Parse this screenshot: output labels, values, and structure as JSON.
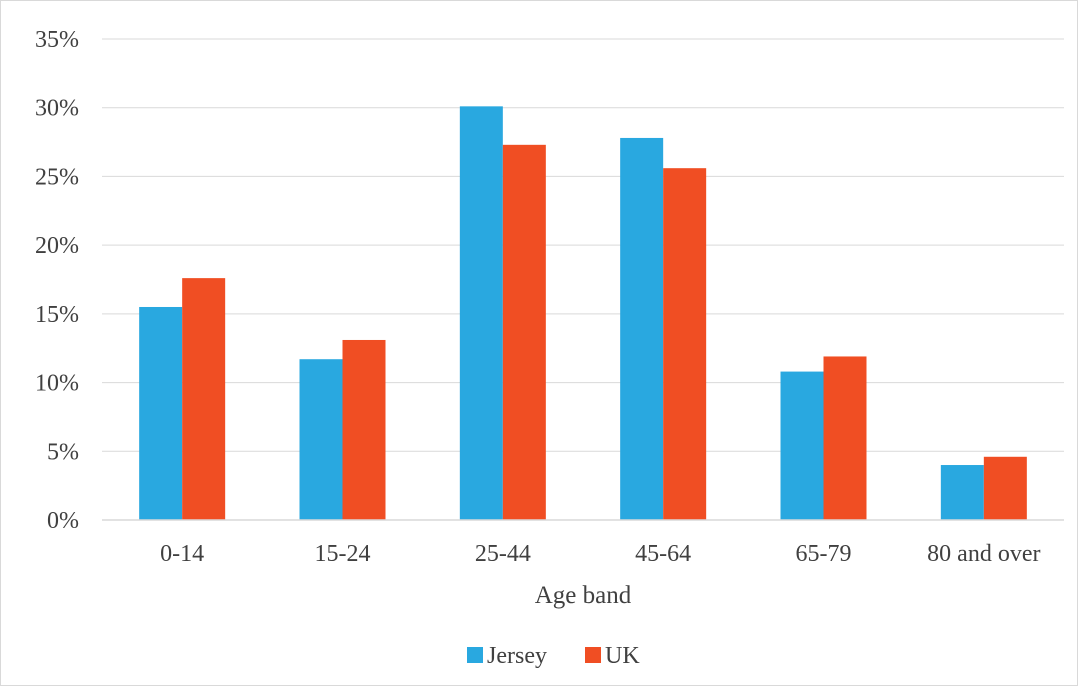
{
  "chart_data": {
    "type": "bar",
    "title": "",
    "xlabel": "Age band",
    "ylabel": "",
    "categories": [
      "0-14",
      "15-24",
      "25-44",
      "45-64",
      "65-79",
      "80 and over"
    ],
    "series": [
      {
        "name": "Jersey",
        "color": "#29a8e0",
        "values": [
          15.5,
          11.7,
          30.1,
          27.8,
          10.8,
          4.0
        ]
      },
      {
        "name": "UK",
        "color": "#f04e23",
        "values": [
          17.6,
          13.1,
          27.3,
          25.6,
          11.9,
          4.6
        ]
      }
    ],
    "ylim": [
      0,
      35
    ],
    "yticks": [
      {
        "value": 0,
        "label": "0%"
      },
      {
        "value": 5,
        "label": "5%"
      },
      {
        "value": 10,
        "label": "10%"
      },
      {
        "value": 15,
        "label": "15%"
      },
      {
        "value": 20,
        "label": "20%"
      },
      {
        "value": 25,
        "label": "25%"
      },
      {
        "value": 30,
        "label": "30%"
      },
      {
        "value": 35,
        "label": "35%"
      }
    ],
    "grid": true,
    "legend_position": "bottom"
  }
}
